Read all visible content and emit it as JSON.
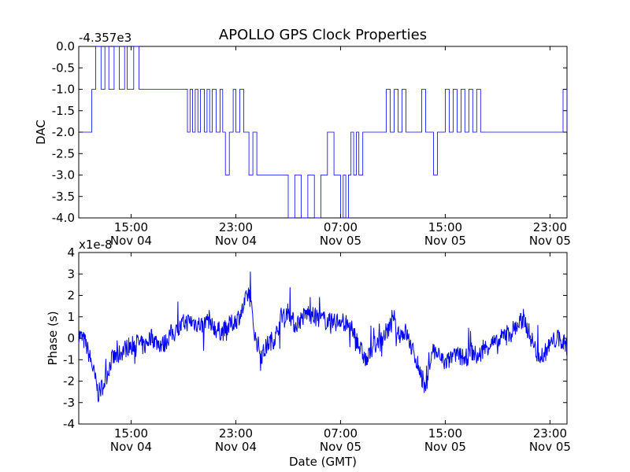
{
  "chart_data": [
    {
      "type": "line",
      "title": "APOLLO GPS Clock Properties",
      "ylabel": "DAC",
      "offset_label": "-4.357e3",
      "ylim": [
        -4.0,
        0.0
      ],
      "yticks": [
        "0.0",
        "-0.5",
        "-1.0",
        "-1.5",
        "-2.0",
        "-2.5",
        "-3.0",
        "-3.5",
        "-4.0"
      ],
      "xticks": [
        {
          "time": "15:00",
          "date": "Nov 04"
        },
        {
          "time": "23:00",
          "date": "Nov 04"
        },
        {
          "time": "07:00",
          "date": "Nov 05"
        },
        {
          "time": "15:00",
          "date": "Nov 05"
        },
        {
          "time": "23:00",
          "date": "Nov 05"
        }
      ],
      "color": "#0000ff",
      "series": [
        {
          "name": "DAC",
          "x": [
            11.0,
            12.0,
            12.3,
            12.7,
            13.0,
            13.3,
            13.7,
            14.1,
            14.5,
            14.7,
            15.2,
            15.6,
            16.0,
            16.4,
            16.9,
            17.3,
            17.7,
            18.1,
            18.5,
            19.0,
            19.3,
            19.5,
            19.7,
            19.9,
            20.1,
            20.3,
            20.6,
            20.8,
            21.0,
            21.2,
            21.5,
            21.8,
            22.0,
            22.2,
            22.5,
            22.8,
            23.0,
            23.3,
            23.6,
            24.0,
            24.3,
            24.6,
            25.0,
            25.3,
            25.6,
            26.0,
            26.5,
            27.0,
            27.5,
            28.0,
            28.5,
            29.0,
            29.5,
            30.0,
            30.5,
            31.0,
            31.2,
            31.4,
            31.6,
            31.8,
            32.0,
            32.2,
            32.4,
            32.7,
            33.0,
            33.3,
            33.6,
            33.9,
            34.2,
            34.5,
            34.8,
            35.1,
            35.4,
            35.7,
            36.0,
            36.3,
            36.6,
            36.9,
            37.2,
            37.5,
            37.8,
            38.1,
            38.4,
            38.7,
            39.0,
            39.3,
            39.6,
            39.9,
            40.2,
            40.5,
            40.8,
            41.1,
            41.4,
            41.7,
            42.0,
            42.3,
            42.6,
            42.9,
            43.2,
            43.5,
            43.8,
            44.1,
            44.4,
            44.7,
            45.0,
            45.3,
            45.6,
            45.9,
            46.2,
            46.5,
            46.8,
            47.1,
            47.4,
            47.7,
            48.0,
            48.3
          ],
          "y": [
            -2.0,
            -1.0,
            0.0,
            -1.0,
            0.0,
            -1.0,
            0.0,
            -1.0,
            0.0,
            -1.0,
            0.0,
            -1.0,
            -1.0,
            -1.0,
            -1.0,
            -1.0,
            -1.0,
            -1.0,
            -1.0,
            -1.0,
            -2.0,
            -1.0,
            -2.0,
            -1.0,
            -2.0,
            -1.0,
            -2.0,
            -1.0,
            -2.0,
            -1.0,
            -2.0,
            -1.0,
            -2.0,
            -3.0,
            -2.0,
            -1.0,
            -2.0,
            -1.0,
            -2.0,
            -3.0,
            -2.0,
            -3.0,
            -3.0,
            -3.0,
            -3.0,
            -3.0,
            -3.0,
            -4.0,
            -3.0,
            -4.0,
            -3.0,
            -4.0,
            -3.0,
            -2.0,
            -3.0,
            -4.0,
            -3.0,
            -4.0,
            -3.0,
            -2.0,
            -3.0,
            -2.0,
            -3.0,
            -2.0,
            -2.0,
            -2.0,
            -2.0,
            -2.0,
            -2.0,
            -1.0,
            -2.0,
            -1.0,
            -2.0,
            -1.0,
            -2.0,
            -2.0,
            -2.0,
            -2.0,
            -1.0,
            -2.0,
            -2.0,
            -3.0,
            -2.0,
            -2.0,
            -1.0,
            -2.0,
            -1.0,
            -2.0,
            -1.0,
            -2.0,
            -1.0,
            -2.0,
            -1.0,
            -2.0,
            -2.0,
            -2.0,
            -2.0,
            -2.0,
            -2.0,
            -2.0,
            -2.0,
            -2.0,
            -2.0,
            -2.0,
            -2.0,
            -2.0,
            -2.0,
            -2.0,
            -2.0,
            -2.0,
            -2.0,
            -2.0,
            -2.0,
            -2.0,
            -1.0,
            -2.0
          ]
        }
      ]
    },
    {
      "type": "line",
      "ylabel": "Phase (s)",
      "xlabel": "Date (GMT)",
      "offset_label": "x1e-8",
      "ylim": [
        -4,
        4
      ],
      "yticks": [
        "4",
        "3",
        "2",
        "1",
        "0",
        "-1",
        "-2",
        "-3",
        "-4"
      ],
      "xticks": [
        {
          "time": "15:00",
          "date": "Nov 04"
        },
        {
          "time": "23:00",
          "date": "Nov 04"
        },
        {
          "time": "07:00",
          "date": "Nov 05"
        },
        {
          "time": "15:00",
          "date": "Nov 05"
        },
        {
          "time": "23:00",
          "date": "Nov 05"
        }
      ],
      "color": "#0000ff",
      "series": [
        {
          "name": "Phase",
          "x": [
            11.0,
            11.5,
            12.0,
            12.5,
            13.0,
            13.5,
            14.0,
            14.5,
            15.0,
            15.5,
            16.0,
            16.5,
            17.0,
            17.5,
            18.0,
            18.5,
            19.0,
            19.5,
            20.0,
            20.5,
            21.0,
            21.5,
            22.0,
            22.5,
            23.0,
            23.5,
            24.0,
            24.5,
            25.0,
            25.5,
            26.0,
            26.5,
            27.0,
            27.5,
            28.0,
            28.5,
            29.0,
            29.5,
            30.0,
            30.5,
            31.0,
            31.5,
            32.0,
            32.5,
            33.0,
            33.5,
            34.0,
            34.5,
            35.0,
            35.5,
            36.0,
            36.5,
            37.0,
            37.5,
            38.0,
            38.5,
            39.0,
            39.5,
            40.0,
            40.5,
            41.0,
            41.5,
            42.0,
            42.5,
            43.0,
            43.5,
            44.0,
            44.5,
            45.0,
            45.5,
            46.0,
            46.5,
            47.0,
            47.5,
            48.0,
            48.3
          ],
          "y": [
            0.2,
            -0.2,
            -1.2,
            -2.6,
            -2.0,
            -1.0,
            -0.8,
            -0.5,
            -0.3,
            -0.2,
            -0.4,
            0.1,
            -0.2,
            -0.3,
            0.2,
            0.3,
            0.7,
            0.8,
            0.7,
            0.6,
            0.9,
            0.4,
            0.3,
            0.6,
            0.8,
            1.3,
            2.2,
            0.0,
            -0.8,
            -0.2,
            0.0,
            1.1,
            1.3,
            0.6,
            0.9,
            1.2,
            1.0,
            0.9,
            0.8,
            0.7,
            0.9,
            0.6,
            0.3,
            -0.5,
            -1.1,
            -0.3,
            -0.2,
            0.3,
            0.7,
            0.2,
            0.3,
            -0.6,
            -1.3,
            -2.5,
            -0.5,
            -0.8,
            -1.2,
            -0.9,
            -0.8,
            -1.0,
            -0.6,
            -0.9,
            -0.5,
            -0.2,
            -0.3,
            0.2,
            0.3,
            0.6,
            0.9,
            0.1,
            -0.7,
            -0.8,
            -0.3,
            0.0,
            -0.2,
            -0.4
          ]
        }
      ]
    }
  ]
}
